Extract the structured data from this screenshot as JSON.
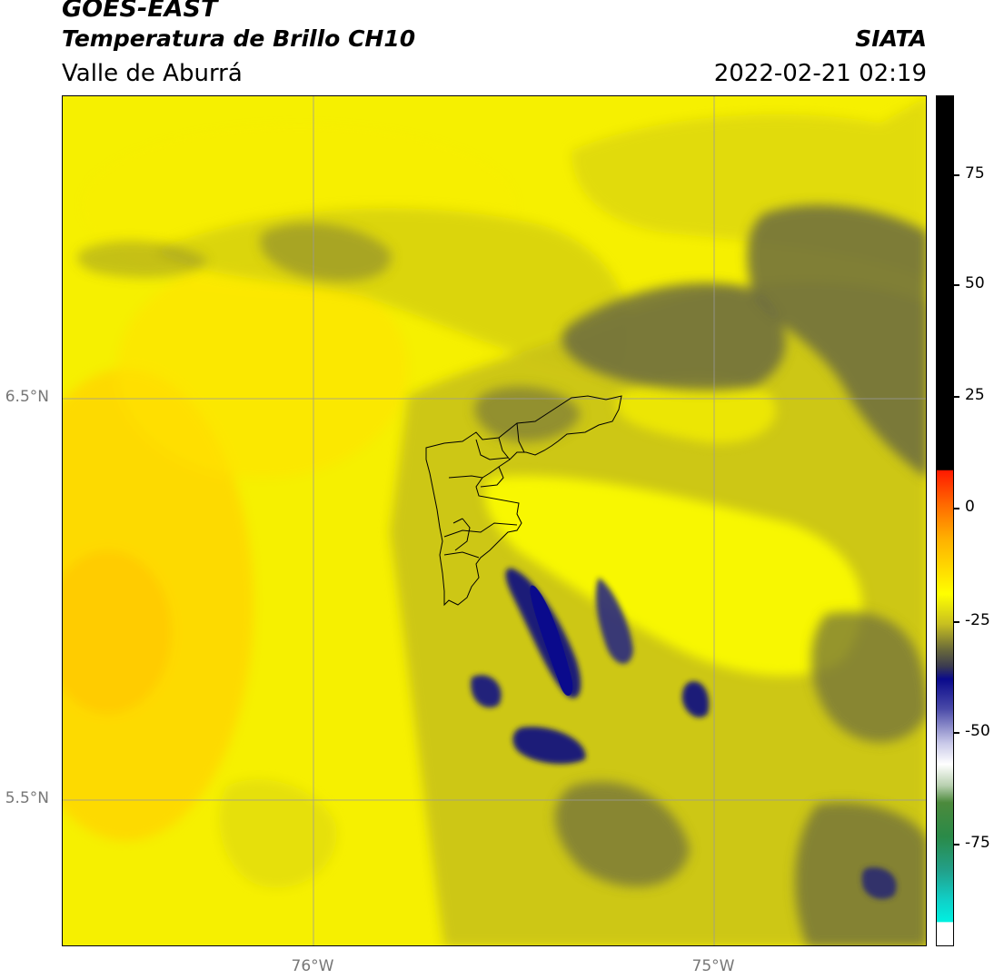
{
  "header": {
    "satellite": "GOES-EAST",
    "product": "Temperatura de Brillo CH10",
    "region": "Valle de Aburrá",
    "agency": "SIATA",
    "timestamp": "2022-02-21 02:19"
  },
  "map": {
    "lat_labels": [
      "6.5°N",
      "5.5°N"
    ],
    "lon_labels": [
      "76°W",
      "75°W"
    ],
    "gridlines": true,
    "boundary": "Valle de Aburrá municipalities"
  },
  "colorbar": {
    "tick_labels": [
      "75",
      "50",
      "25",
      "0",
      "-25",
      "-50",
      "-75"
    ],
    "colors": {
      "high": "#000000",
      "red": "#ff2000",
      "orange": "#ff8c00",
      "yellow": "#ffff00",
      "olive": "#5a5a3c",
      "navy": "#0a0a8c",
      "white": "#ffffff",
      "green": "#3a8a3a",
      "cyan": "#00eedd"
    }
  }
}
